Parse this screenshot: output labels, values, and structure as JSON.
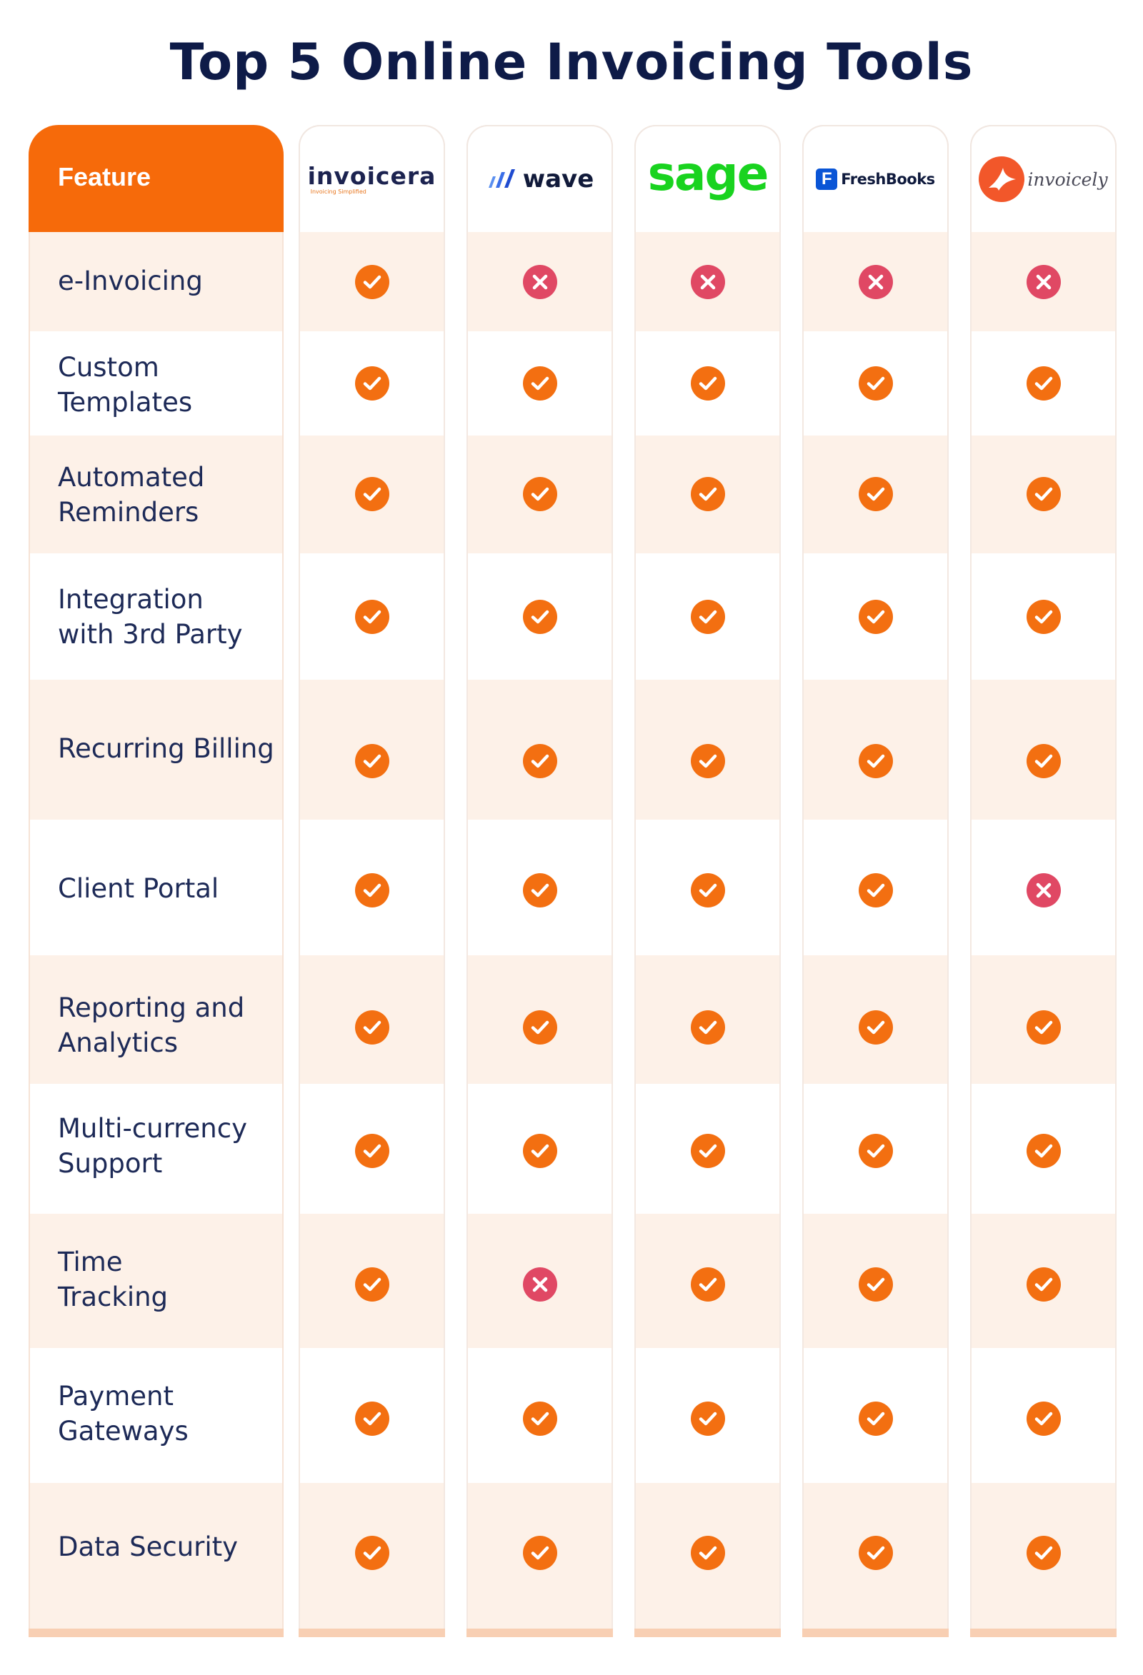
{
  "title": "Top 5 Online Invoicing Tools",
  "header": {
    "feature_label": "Feature"
  },
  "colors": {
    "accent": "#f66a0a",
    "check": "#f36f11",
    "cross": "#e04864",
    "stripe": "#fdf1e8",
    "title": "#0e1b48"
  },
  "tools": [
    {
      "name": "invoicera",
      "tagline": "Invoicing Simplified",
      "icon": "invoicera-logo"
    },
    {
      "name": "wave",
      "icon": "wave-logo"
    },
    {
      "name": "sage",
      "icon": "sage-logo"
    },
    {
      "name": "FreshBooks",
      "icon": "freshbooks-logo"
    },
    {
      "name": "invoicely",
      "icon": "invoicely-logo"
    }
  ],
  "features": [
    {
      "label": "e-Invoicing",
      "support": [
        true,
        false,
        false,
        false,
        false
      ]
    },
    {
      "label": "Custom\nTemplates",
      "support": [
        true,
        true,
        true,
        true,
        true
      ]
    },
    {
      "label": "Automated\nReminders",
      "support": [
        true,
        true,
        true,
        true,
        true
      ]
    },
    {
      "label": "Integration\nwith 3rd Party",
      "support": [
        true,
        true,
        true,
        true,
        true
      ]
    },
    {
      "label": "Recurring Billing",
      "support": [
        true,
        true,
        true,
        true,
        true
      ]
    },
    {
      "label": "Client Portal",
      "support": [
        true,
        true,
        true,
        true,
        false
      ]
    },
    {
      "label": "Reporting and\nAnalytics",
      "support": [
        true,
        true,
        true,
        true,
        true
      ]
    },
    {
      "label": "Multi-currency\nSupport",
      "support": [
        true,
        true,
        true,
        true,
        true
      ]
    },
    {
      "label": "Time\nTracking",
      "support": [
        true,
        false,
        true,
        true,
        true
      ]
    },
    {
      "label": "Payment\nGateways",
      "support": [
        true,
        true,
        true,
        true,
        true
      ]
    },
    {
      "label": "Data Security",
      "support": [
        true,
        true,
        true,
        true,
        true
      ]
    }
  ]
}
